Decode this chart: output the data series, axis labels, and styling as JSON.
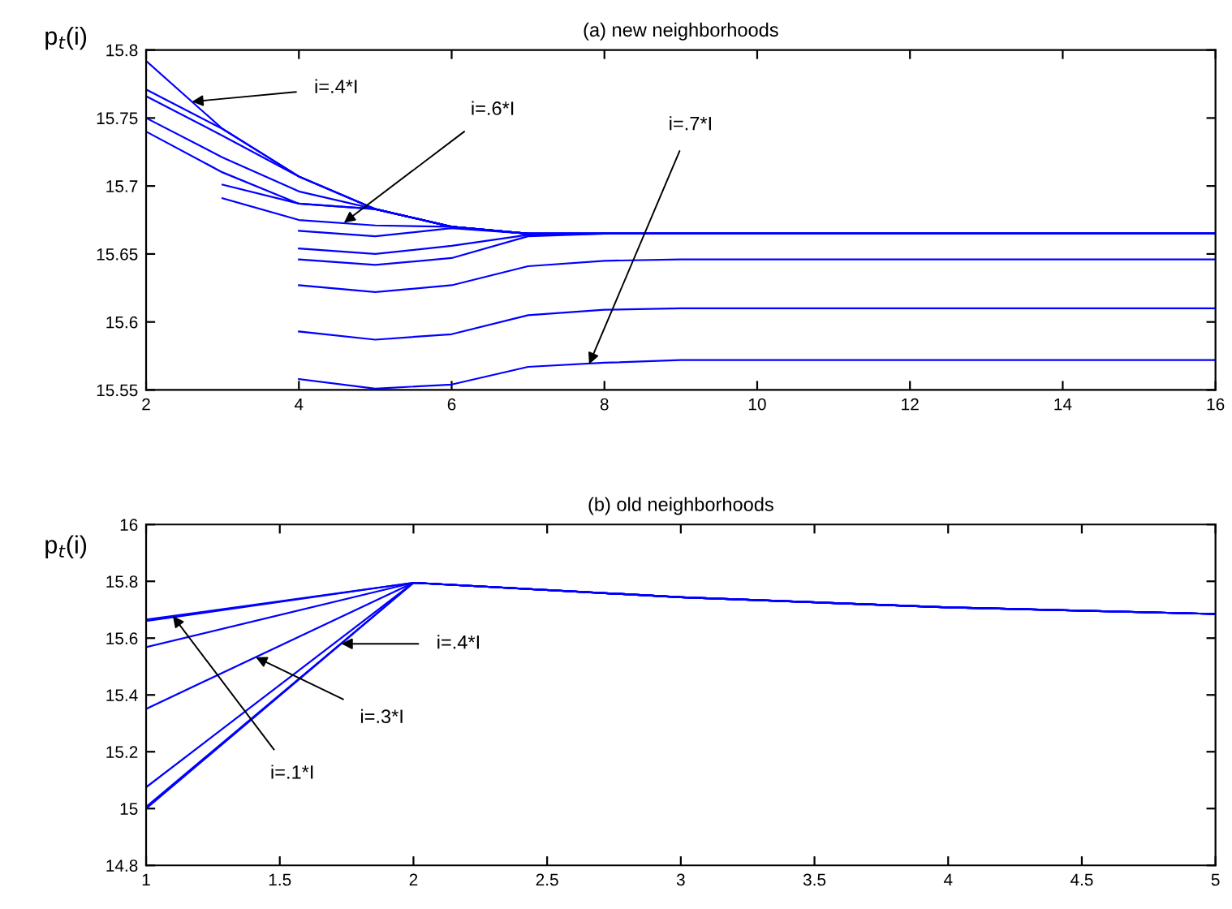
{
  "chart_data": [
    {
      "type": "line",
      "title": "(a) new neighborhoods",
      "ylabel": "p$_{t}$(i)",
      "xlim": [
        2,
        16
      ],
      "xticks": [
        2,
        4,
        6,
        8,
        10,
        12,
        14,
        16
      ],
      "ylim": [
        15.55,
        15.8
      ],
      "yticks": [
        15.55,
        15.6,
        15.65,
        15.7,
        15.75,
        15.8
      ],
      "grid": false,
      "marker": "none",
      "line_style": "solid",
      "annotations": [
        {
          "text": "i=.4*I",
          "x": 2.6,
          "y": 15.762
        },
        {
          "text": "i=.6*I",
          "x": 4.59,
          "y": 15.673
        },
        {
          "text": "i=.7*I",
          "x": 7.8,
          "y": 15.569
        }
      ],
      "series": [
        {
          "color": "#0000ff",
          "x": [
            2,
            3,
            4,
            5,
            6,
            7,
            8,
            16
          ],
          "values": [
            15.792,
            15.742,
            15.707,
            15.683,
            15.67,
            15.665,
            15.665,
            15.665
          ]
        },
        {
          "color": "#0000ff",
          "x": [
            2,
            3,
            4,
            5,
            6,
            7,
            8,
            16
          ],
          "values": [
            15.771,
            15.742,
            15.707,
            15.683,
            15.67,
            15.665,
            15.665,
            15.665
          ]
        },
        {
          "color": "#0000ff",
          "x": [
            2,
            3,
            4,
            5,
            6,
            7,
            8,
            16
          ],
          "values": [
            15.766,
            15.737,
            15.707,
            15.683,
            15.67,
            15.665,
            15.665,
            15.665
          ]
        },
        {
          "color": "#0000ff",
          "x": [
            2,
            3,
            4,
            5,
            6,
            7,
            8,
            16
          ],
          "values": [
            15.75,
            15.721,
            15.696,
            15.683,
            15.67,
            15.665,
            15.665,
            15.665
          ]
        },
        {
          "color": "#0000ff",
          "x": [
            2,
            3,
            4,
            5,
            6,
            7,
            8,
            16
          ],
          "values": [
            15.74,
            15.71,
            15.687,
            15.683,
            15.67,
            15.665,
            15.665,
            15.665
          ]
        },
        {
          "color": "#0000ff",
          "x": [
            3,
            4,
            5,
            6,
            7,
            8,
            16
          ],
          "values": [
            15.701,
            15.687,
            15.683,
            15.67,
            15.665,
            15.665,
            15.665
          ]
        },
        {
          "color": "#0000ff",
          "x": [
            3,
            4,
            5,
            6,
            7,
            8,
            16
          ],
          "values": [
            15.691,
            15.675,
            15.671,
            15.67,
            15.665,
            15.665,
            15.665
          ]
        },
        {
          "color": "#0000ff",
          "x": [
            4,
            5,
            6,
            7,
            8,
            16
          ],
          "values": [
            15.667,
            15.663,
            15.669,
            15.665,
            15.665,
            15.665
          ]
        },
        {
          "color": "#0000ff",
          "x": [
            4,
            5,
            6,
            7,
            8,
            16
          ],
          "values": [
            15.654,
            15.65,
            15.656,
            15.664,
            15.665,
            15.665
          ]
        },
        {
          "color": "#0000ff",
          "x": [
            4,
            5,
            6,
            7,
            8,
            16
          ],
          "values": [
            15.646,
            15.642,
            15.647,
            15.663,
            15.665,
            15.665
          ]
        },
        {
          "color": "#0000ff",
          "x": [
            4,
            5,
            6,
            7,
            8,
            9,
            16
          ],
          "values": [
            15.627,
            15.622,
            15.627,
            15.641,
            15.645,
            15.646,
            15.646
          ]
        },
        {
          "color": "#0000ff",
          "x": [
            4,
            5,
            6,
            7,
            8,
            9,
            16
          ],
          "values": [
            15.593,
            15.587,
            15.591,
            15.605,
            15.609,
            15.61,
            15.61
          ]
        },
        {
          "color": "#0000ff",
          "x": [
            4,
            5,
            6,
            7,
            8,
            9,
            16
          ],
          "values": [
            15.558,
            15.551,
            15.554,
            15.567,
            15.57,
            15.572,
            15.572
          ]
        }
      ]
    },
    {
      "type": "line",
      "title": "(b) old neighborhoods",
      "ylabel": "p$_{t}$(i)",
      "xlim": [
        1,
        5
      ],
      "xticks": [
        1,
        1.5,
        2,
        2.5,
        3,
        3.5,
        4,
        4.5,
        5
      ],
      "ylim": [
        14.8,
        16
      ],
      "yticks": [
        14.8,
        15,
        15.2,
        15.4,
        15.6,
        15.8,
        16
      ],
      "grid": false,
      "marker": "none",
      "line_style": "solid",
      "annotations": [
        {
          "text": "i=.4*I",
          "x": 1.73,
          "y": 15.58
        },
        {
          "text": "i=.3*I",
          "x": 1.41,
          "y": 15.533
        },
        {
          "text": "i=.1*I",
          "x": 1.1,
          "y": 15.678
        }
      ],
      "series": [
        {
          "color": "#0000ff",
          "x": [
            1,
            2,
            3,
            4,
            5
          ],
          "values": [
            15.665,
            15.795,
            15.744,
            15.708,
            15.685
          ]
        },
        {
          "color": "#0000ff",
          "x": [
            1,
            2,
            3,
            4,
            5
          ],
          "values": [
            15.66,
            15.795,
            15.744,
            15.708,
            15.685
          ]
        },
        {
          "color": "#0000ff",
          "x": [
            1,
            2,
            3,
            4,
            5
          ],
          "values": [
            15.568,
            15.795,
            15.744,
            15.708,
            15.685
          ]
        },
        {
          "color": "#0000ff",
          "x": [
            1,
            2,
            3,
            4,
            5
          ],
          "values": [
            15.351,
            15.795,
            15.744,
            15.708,
            15.685
          ]
        },
        {
          "color": "#0000ff",
          "x": [
            1,
            2,
            3,
            4,
            5
          ],
          "values": [
            15.075,
            15.795,
            15.744,
            15.708,
            15.685
          ]
        },
        {
          "color": "#0000ff",
          "x": [
            1,
            2,
            3,
            4,
            5
          ],
          "values": [
            15.006,
            15.795,
            15.744,
            15.708,
            15.685
          ]
        },
        {
          "color": "#0000ff",
          "x": [
            1,
            2,
            3,
            4,
            5
          ],
          "values": [
            15.0,
            15.795,
            15.744,
            15.708,
            15.685
          ]
        }
      ]
    }
  ]
}
